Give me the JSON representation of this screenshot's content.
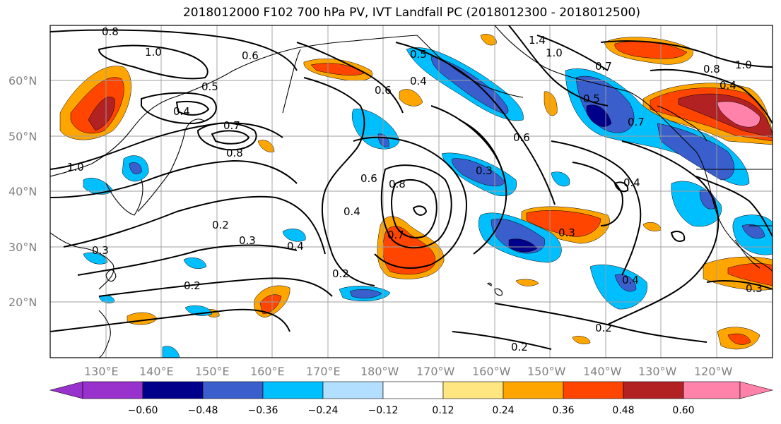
{
  "title": "2018012000 F102 700 hPa PV, IVT Landfall PC (2018012300 - 2018012500)",
  "lat_labels": [
    "60°N",
    "50°N",
    "40°N",
    "30°N",
    "20°N"
  ],
  "lon_labels": [
    "130°E",
    "140°E",
    "150°E",
    "160°E",
    "170°E",
    "180°W",
    "170°W",
    "160°W",
    "150°W",
    "140°W",
    "130°W",
    "120°W"
  ],
  "colorbar": {
    "ticks": [
      "−0.60",
      "−0.48",
      "−0.36",
      "−0.24",
      "−0.12",
      "0.12",
      "0.24",
      "0.36",
      "0.48",
      "0.60"
    ],
    "colors": [
      "#9932cc",
      "#00008b",
      "#3a5fcd",
      "#00bfff",
      "#b2dfff",
      "#ffffff",
      "#ffe680",
      "#ffa500",
      "#ff4500",
      "#b22222",
      "#ff82ab"
    ]
  },
  "contour_labels": [
    "0.8",
    "1.0",
    "0.6",
    "0.5",
    "0.4",
    "0.7",
    "0.8",
    "1.0",
    "0.3",
    "0.2",
    "0.3",
    "0.4",
    "0.2",
    "0.2",
    "0.4",
    "0.6",
    "0.8",
    "0.7",
    "0.6",
    "0.3",
    "0.4",
    "0.3",
    "0.6",
    "0.5",
    "0.7",
    "0.4",
    "0.8",
    "1.0",
    "0.7",
    "0.4",
    "0.3",
    "0.4",
    "0.2",
    "0.2",
    "0.5",
    "1.4",
    "1.0"
  ]
}
